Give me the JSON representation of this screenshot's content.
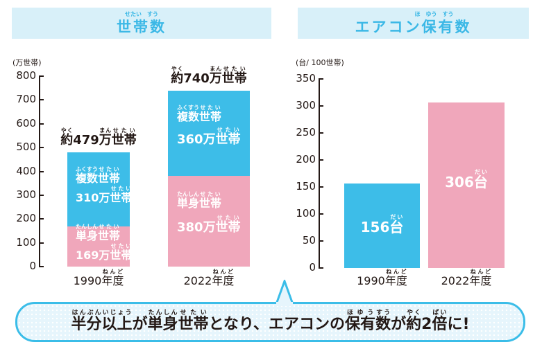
{
  "left_panel": {
    "title": [
      {
        "t": "世帯",
        "r": "せたい"
      },
      {
        "t": "数",
        "r": "すう"
      }
    ],
    "unit": "(万世帯)",
    "ticks": [
      "0",
      "100",
      "200",
      "300",
      "400",
      "500",
      "600",
      "700",
      "800"
    ],
    "bars": [
      {
        "year": [
          {
            "t": "1990"
          },
          {
            "t": "年度",
            "r": "ねんど"
          }
        ],
        "total": [
          {
            "t": "約",
            "r": "やく"
          },
          {
            "t": "479"
          },
          {
            "t": "万",
            "r": "まん"
          },
          {
            "t": "世帯",
            "r": "せたい"
          }
        ],
        "multi_label": [
          {
            "t": "複数",
            "r": "ふくすう"
          },
          {
            "t": "世帯",
            "r": "せたい"
          }
        ],
        "multi_value": [
          {
            "t": "310万"
          },
          {
            "t": "世帯",
            "r": "せたい"
          }
        ],
        "single_label": [
          {
            "t": "単身",
            "r": "たんしん"
          },
          {
            "t": "世帯",
            "r": "せたい"
          }
        ],
        "single_value": [
          {
            "t": "169万"
          },
          {
            "t": "世帯",
            "r": "せたい"
          }
        ]
      },
      {
        "year": [
          {
            "t": "2022"
          },
          {
            "t": "年度",
            "r": "ねんど"
          }
        ],
        "total": [
          {
            "t": "約",
            "r": "やく"
          },
          {
            "t": "740"
          },
          {
            "t": "万",
            "r": "まん"
          },
          {
            "t": "世帯",
            "r": "せたい"
          }
        ],
        "multi_label": [
          {
            "t": "複数",
            "r": "ふくすう"
          },
          {
            "t": "世帯",
            "r": "せたい"
          }
        ],
        "multi_value": [
          {
            "t": "360万"
          },
          {
            "t": "世帯",
            "r": "せたい"
          }
        ],
        "single_label": [
          {
            "t": "単身",
            "r": "たんしん"
          },
          {
            "t": "世帯",
            "r": "せたい"
          }
        ],
        "single_value": [
          {
            "t": "380万"
          },
          {
            "t": "世帯",
            "r": "せたい"
          }
        ]
      }
    ]
  },
  "right_panel": {
    "title": [
      {
        "t": "エアコン"
      },
      {
        "t": "保",
        "r": "ほ"
      },
      {
        "t": "有",
        "r": "ゆう"
      },
      {
        "t": "数",
        "r": "すう"
      }
    ],
    "unit": "(台/ 100世帯)",
    "ticks": [
      "0",
      "50",
      "100",
      "150",
      "200",
      "250",
      "300",
      "350"
    ],
    "bars": [
      {
        "year": [
          {
            "t": "1990"
          },
          {
            "t": "年度",
            "r": "ねんど"
          }
        ],
        "value": [
          {
            "t": "156"
          },
          {
            "t": "台",
            "r": "だい"
          }
        ]
      },
      {
        "year": [
          {
            "t": "2022"
          },
          {
            "t": "年度",
            "r": "ねんど"
          }
        ],
        "value": [
          {
            "t": "306"
          },
          {
            "t": "台",
            "r": "だい"
          }
        ]
      }
    ]
  },
  "banner": [
    {
      "t": "半分",
      "r": "はんぶん"
    },
    {
      "t": "以上",
      "r": "いじょう"
    },
    {
      "t": "が"
    },
    {
      "t": "単身",
      "r": "たんしん"
    },
    {
      "t": "世帯",
      "r": "せたい"
    },
    {
      "t": "となり、エアコンの"
    },
    {
      "t": "保有",
      "r": "ほゆう"
    },
    {
      "t": "数",
      "r": "すう"
    },
    {
      "t": "が"
    },
    {
      "t": "約",
      "r": "やく"
    },
    {
      "t": "2"
    },
    {
      "t": "倍",
      "r": "ばい"
    },
    {
      "t": "に!"
    }
  ],
  "colors": {
    "multi": "#3dbde8",
    "single": "#f0a7bb",
    "title_bg": "#d8f0f9",
    "title_text": "#3bb8e6"
  },
  "chart_data": [
    {
      "type": "bar",
      "stacked": true,
      "title": "世帯数",
      "ylabel": "(万世帯)",
      "categories": [
        "1990年度",
        "2022年度"
      ],
      "ylim": [
        0,
        800
      ],
      "series": [
        {
          "name": "単身世帯",
          "values": [
            169,
            380
          ]
        },
        {
          "name": "複数世帯",
          "values": [
            310,
            360
          ]
        }
      ],
      "totals": [
        479,
        740
      ]
    },
    {
      "type": "bar",
      "title": "エアコン保有数",
      "ylabel": "(台/ 100世帯)",
      "categories": [
        "1990年度",
        "2022年度"
      ],
      "ylim": [
        0,
        350
      ],
      "series": [
        {
          "name": "エアコン保有数",
          "values": [
            156,
            306
          ]
        }
      ]
    }
  ]
}
